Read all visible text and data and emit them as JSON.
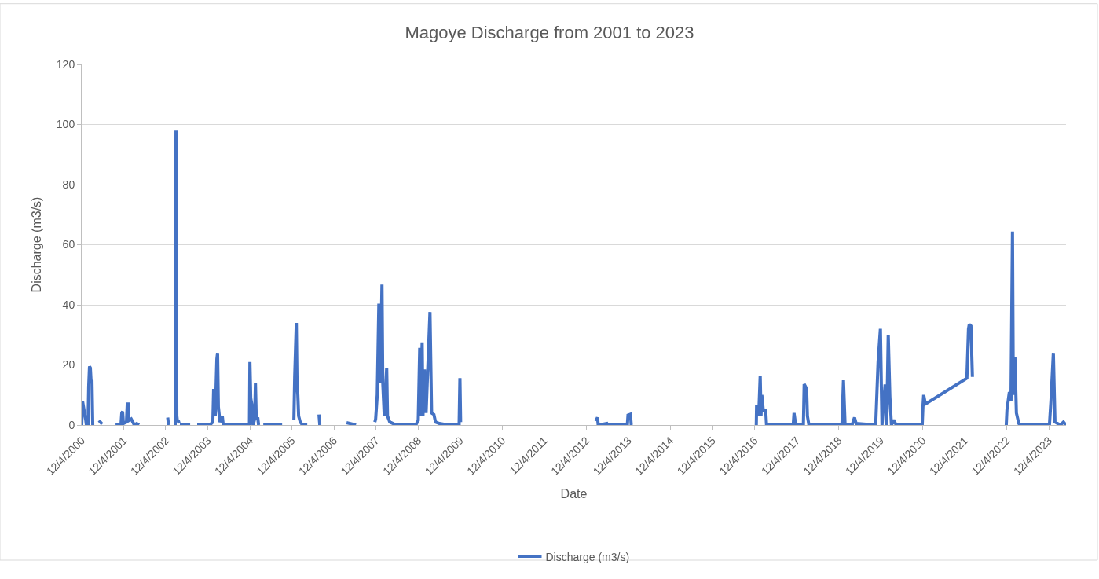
{
  "chart_data": {
    "type": "line",
    "title": "Magoye Discharge from 2001 to 2023",
    "xlabel": "Date",
    "ylabel": "Discharge (m3/s)",
    "x": [
      "2000-12-04",
      "2000-12-11",
      "2000-12-24",
      "2001-01-07",
      "2001-01-14",
      "2001-01-28",
      "2001-02-03",
      "2001-02-10",
      "2001-02-17",
      "2001-02-24",
      "2001-03-03",
      "2001-03-10",
      "2001-04-06",
      "2001-05-03",
      "2001-05-31",
      "2001-08-01",
      "2001-09-24",
      "2001-11-10",
      "2001-11-17",
      "2001-11-24",
      "2001-12-01",
      "2001-12-28",
      "2002-01-04",
      "2002-01-11",
      "2002-01-17",
      "2002-02-07",
      "2002-02-21",
      "2002-03-06",
      "2002-03-27",
      "2002-04-16",
      "2002-08-01",
      "2002-12-21",
      "2002-12-28",
      "2003-01-20",
      "2003-02-24",
      "2003-03-03",
      "2003-03-10",
      "2003-03-16",
      "2003-03-23",
      "2003-03-30",
      "2003-04-03",
      "2003-04-06",
      "2003-07-04",
      "2003-08-05",
      "2003-09-03",
      "2003-12-21",
      "2004-01-17",
      "2004-01-24",
      "2004-02-07",
      "2004-02-21",
      "2004-02-27",
      "2004-03-05",
      "2004-03-19",
      "2004-04-08",
      "2004-04-15",
      "2004-04-29",
      "2004-11-14",
      "2004-11-30",
      "2004-12-04",
      "2004-12-11",
      "2004-12-24",
      "2004-12-31",
      "2005-01-14",
      "2005-01-21",
      "2005-01-28",
      "2005-02-10",
      "2005-02-17",
      "2005-03-01",
      "2005-03-30",
      "2005-09-10",
      "2005-11-01",
      "2005-12-21",
      "2005-12-28",
      "2006-01-11",
      "2006-01-17",
      "2006-01-24",
      "2006-01-31",
      "2006-02-14",
      "2006-03-06",
      "2006-04-16",
      "2006-06-01",
      "2006-07-27",
      "2006-08-03",
      "2006-12-01",
      "2007-03-23",
      "2007-06-13",
      "2007-08-01",
      "2007-11-24",
      "2007-12-01",
      "2007-12-15",
      "2007-12-29",
      "2008-01-11",
      "2008-01-25",
      "2008-02-01",
      "2008-02-14",
      "2008-03-06",
      "2008-03-13",
      "2008-04-02",
      "2008-05-27",
      "2008-11-13",
      "2008-12-05",
      "2008-12-18",
      "2008-12-25",
      "2009-01-08",
      "2009-01-15",
      "2009-01-28",
      "2009-02-11",
      "2009-03-17",
      "2009-03-31",
      "2009-04-20",
      "2009-05-04",
      "2009-06-07",
      "2009-08-21",
      "2009-11-25",
      "2009-12-02",
      "2009-12-08",
      "2011-06-01",
      "2013-02-25",
      "2013-03-11",
      "2013-03-17",
      "2013-05-31",
      "2013-06-07",
      "2013-11-25",
      "2013-12-01",
      "2013-12-22",
      "2013-12-29",
      "2015-06-01",
      "2016-12-19",
      "2016-12-22",
      "2017-01-09",
      "2017-01-22",
      "2017-01-29",
      "2017-02-05",
      "2017-02-18",
      "2017-03-11",
      "2017-03-18",
      "2017-11-05",
      "2017-11-12",
      "2017-11-26",
      "2018-02-01",
      "2018-02-08",
      "2018-03-01",
      "2018-03-08",
      "2018-03-21",
      "2018-11-29",
      "2019-01-02",
      "2019-01-15",
      "2019-01-29",
      "2019-03-31",
      "2019-04-21",
      "2019-05-05",
      "2019-10-22",
      "2019-11-12",
      "2019-12-02",
      "2019-12-16",
      "2020-01-12",
      "2020-01-26",
      "2020-02-08",
      "2020-02-22",
      "2020-03-07",
      "2020-03-27",
      "2020-04-17",
      "2020-11-29",
      "2020-12-05",
      "2020-12-12",
      "2020-12-26",
      "2021-01-09",
      "2021-12-22",
      "2022-01-05",
      "2022-01-12",
      "2022-01-26",
      "2022-02-08",
      "2022-06-01",
      "2022-11-29",
      "2022-12-05",
      "2022-12-26",
      "2023-01-09",
      "2023-01-22",
      "2023-01-29",
      "2023-02-12",
      "2023-02-25",
      "2023-03-18",
      "2023-04-07",
      "2023-12-09",
      "2023-12-22",
      "2024-01-12",
      "2024-01-26",
      "2024-03-13",
      "2024-04-09",
      "2024-05-01"
    ],
    "series": [
      {
        "name": "Discharge (m3/s)",
        "color": "#4472c4",
        "values": [
          0,
          8,
          5,
          2,
          0,
          0,
          13,
          19.5,
          19,
          14,
          15,
          0,
          null,
          1.5,
          0.3,
          null,
          0,
          0,
          4,
          4.5,
          0.5,
          1,
          7,
          7,
          1.5,
          2,
          1,
          0,
          0.5,
          0,
          null,
          2.5,
          0,
          null,
          0,
          98,
          3,
          1,
          1.5,
          0.5,
          null,
          0,
          0,
          null,
          0,
          0,
          1,
          12,
          3,
          22,
          24,
          6,
          1,
          3,
          0.5,
          0,
          0,
          0,
          21,
          9,
          6,
          0,
          2,
          14,
          2,
          2.5,
          0,
          null,
          0,
          0,
          null,
          1.8,
          16,
          34,
          14,
          10,
          3,
          1,
          0,
          0,
          null,
          3.5,
          0,
          null,
          0.8,
          0,
          null,
          1,
          2,
          10,
          40.4,
          14,
          46.7,
          14,
          3,
          19,
          3,
          1,
          0,
          0,
          1.5,
          25.7,
          3,
          27.5,
          3,
          18.5,
          4,
          37.6,
          4,
          3.5,
          1,
          0.5,
          0,
          0,
          15.6,
          1,
          null,
          1.3,
          2.5,
          0,
          0.5,
          0,
          0,
          3.3,
          3.6,
          0,
          null,
          0,
          6.8,
          3,
          16.4,
          3,
          10,
          4.7,
          4.7,
          0,
          0,
          4,
          0,
          0,
          13.6,
          12,
          3,
          0,
          0,
          0,
          14.9,
          0,
          0,
          2.5,
          0.5,
          0,
          21,
          32,
          0,
          13.5,
          0,
          30,
          9.5,
          0,
          1.7,
          0,
          0,
          6,
          10,
          7,
          7.3,
          15.6,
          32,
          33.5,
          33,
          16,
          null,
          0,
          5,
          11,
          8,
          64.4,
          10,
          22.5,
          4,
          0.5,
          0,
          0,
          8,
          24,
          1,
          0,
          1,
          0
        ]
      }
    ],
    "xlim": [
      "2000-12-04",
      "2024-05-01"
    ],
    "xticks": [
      {
        "value": "2000-12-04",
        "label": "12/4/2000"
      },
      {
        "value": "2001-12-04",
        "label": "12/4/2001"
      },
      {
        "value": "2002-12-04",
        "label": "12/4/2002"
      },
      {
        "value": "2003-12-04",
        "label": "12/4/2003"
      },
      {
        "value": "2004-12-04",
        "label": "12/4/2004"
      },
      {
        "value": "2005-12-04",
        "label": "12/4/2005"
      },
      {
        "value": "2006-12-04",
        "label": "12/4/2006"
      },
      {
        "value": "2007-12-04",
        "label": "12/4/2007"
      },
      {
        "value": "2008-12-04",
        "label": "12/4/2008"
      },
      {
        "value": "2009-12-04",
        "label": "12/4/2009"
      },
      {
        "value": "2010-12-04",
        "label": "12/4/2010"
      },
      {
        "value": "2011-12-04",
        "label": "12/4/2011"
      },
      {
        "value": "2012-12-04",
        "label": "12/4/2012"
      },
      {
        "value": "2013-12-04",
        "label": "12/4/2013"
      },
      {
        "value": "2014-12-04",
        "label": "12/4/2014"
      },
      {
        "value": "2015-12-04",
        "label": "12/4/2015"
      },
      {
        "value": "2016-12-04",
        "label": "12/4/2016"
      },
      {
        "value": "2017-12-04",
        "label": "12/4/2017"
      },
      {
        "value": "2018-12-04",
        "label": "12/4/2018"
      },
      {
        "value": "2019-12-04",
        "label": "12/4/2019"
      },
      {
        "value": "2020-12-04",
        "label": "12/4/2020"
      },
      {
        "value": "2021-12-04",
        "label": "12/4/2021"
      },
      {
        "value": "2022-12-04",
        "label": "12/4/2022"
      },
      {
        "value": "2023-12-04",
        "label": "12/4/2023"
      }
    ],
    "ylim": [
      0,
      120
    ],
    "yticks": [
      0,
      20,
      40,
      60,
      80,
      100,
      120
    ],
    "grid": "y",
    "legend": "bottom",
    "line_style": "solid",
    "marker": "none"
  }
}
